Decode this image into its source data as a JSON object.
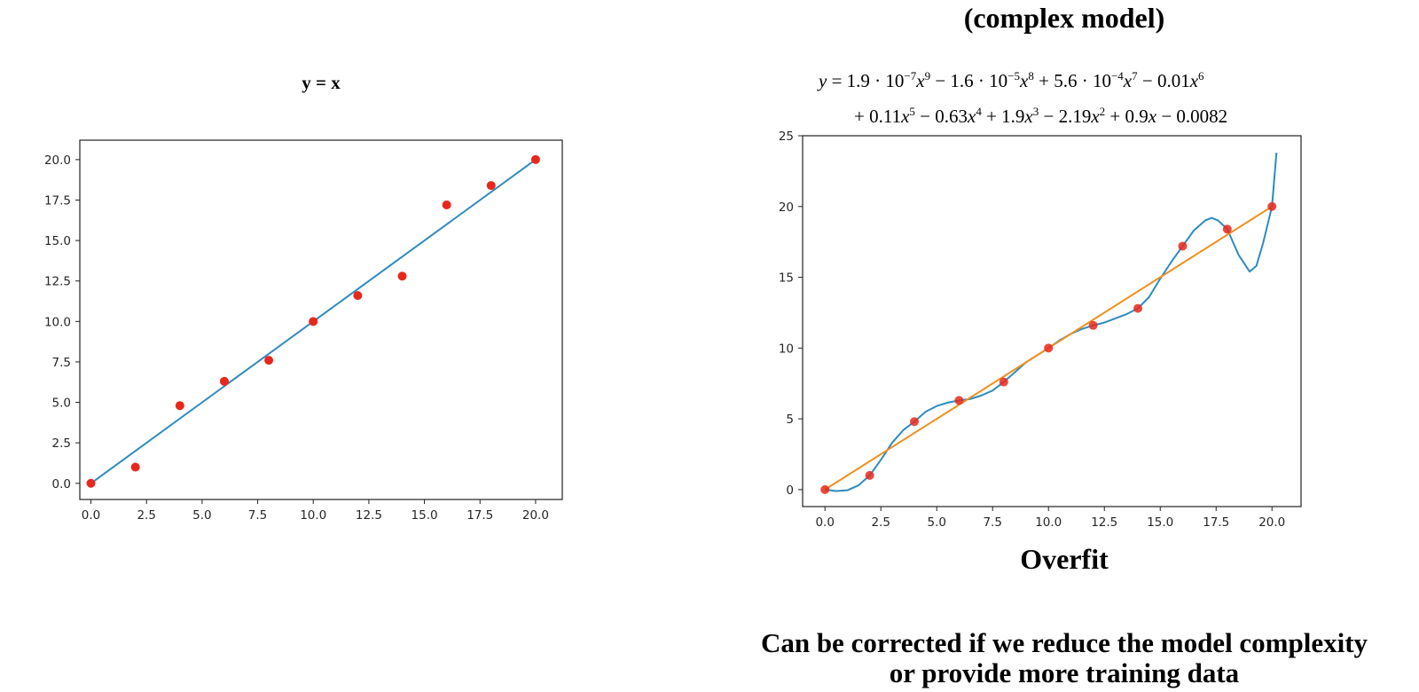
{
  "page": {
    "top_heading": "(complex model)",
    "overfit_label": "Overfit",
    "conclusion_line_1": "Can be corrected if we reduce the model complexity",
    "conclusion_line_2": "or provide more training data"
  },
  "equation": {
    "line1": [
      {
        "t": "",
        "i": "y"
      },
      {
        "t": " = 1.9 · 10"
      },
      {
        "sup": "−7"
      },
      {
        "i": "x"
      },
      {
        "sup": "9"
      },
      {
        "t": " − 1.6 · 10"
      },
      {
        "sup": "−5"
      },
      {
        "i": "x"
      },
      {
        "sup": "8"
      },
      {
        "t": " + 5.6 · 10"
      },
      {
        "sup": "−4"
      },
      {
        "i": "x"
      },
      {
        "sup": "7"
      },
      {
        "t": " − 0.01"
      },
      {
        "i": "x"
      },
      {
        "sup": "6"
      }
    ],
    "line2": [
      {
        "t": "+ 0.11"
      },
      {
        "i": "x"
      },
      {
        "sup": "5"
      },
      {
        "t": " − 0.63"
      },
      {
        "i": "x"
      },
      {
        "sup": "4"
      },
      {
        "t": " + 1.9"
      },
      {
        "i": "x"
      },
      {
        "sup": "3"
      },
      {
        "t": " − 2.19"
      },
      {
        "i": "x"
      },
      {
        "sup": "2"
      },
      {
        "t": " + 0.9"
      },
      {
        "i": "x"
      },
      {
        "t": " − 0.0082"
      }
    ]
  },
  "chart_data": [
    {
      "type": "scatter",
      "title": "y = x",
      "xlim": [
        -0.5,
        21.2
      ],
      "ylim": [
        -1.0,
        21.2
      ],
      "xticks": [
        0,
        2.5,
        5,
        7.5,
        10,
        12.5,
        15,
        17.5,
        20
      ],
      "xtick_labels": [
        "0.0",
        "2.5",
        "5.0",
        "7.5",
        "10.0",
        "12.5",
        "15.0",
        "17.5",
        "20.0"
      ],
      "yticks": [
        0,
        2.5,
        5,
        7.5,
        10,
        12.5,
        15,
        17.5,
        20
      ],
      "ytick_labels": [
        "0.0",
        "2.5",
        "5.0",
        "7.5",
        "10.0",
        "12.5",
        "15.0",
        "17.5",
        "20.0"
      ],
      "grid": false,
      "points": {
        "color": "#e8281c",
        "x": [
          0,
          2,
          4,
          6,
          8,
          10,
          12,
          14,
          16,
          18,
          20
        ],
        "y": [
          0,
          1.0,
          4.8,
          6.3,
          7.6,
          10.0,
          11.6,
          12.8,
          17.2,
          18.4,
          20.0
        ]
      },
      "lines": [
        {
          "color": "#2e8bc0",
          "x": [
            0,
            20
          ],
          "y": [
            0,
            20
          ]
        }
      ]
    },
    {
      "type": "scatter",
      "title": "",
      "xlim": [
        -1.0,
        21.3
      ],
      "ylim": [
        -1.2,
        25.0
      ],
      "xticks": [
        0,
        2.5,
        5,
        7.5,
        10,
        12.5,
        15,
        17.5,
        20
      ],
      "xtick_labels": [
        "0.0",
        "2.5",
        "5.0",
        "7.5",
        "10.0",
        "12.5",
        "15.0",
        "17.5",
        "20.0"
      ],
      "yticks": [
        0,
        5,
        10,
        15,
        20,
        25
      ],
      "ytick_labels": [
        "0",
        "5",
        "10",
        "15",
        "20",
        "25"
      ],
      "grid": false,
      "points": {
        "color": "#e8281c",
        "x": [
          0,
          2,
          4,
          6,
          8,
          10,
          12,
          14,
          16,
          18,
          20
        ],
        "y": [
          0,
          1.0,
          4.8,
          6.3,
          7.6,
          10.0,
          11.6,
          12.8,
          17.2,
          18.4,
          20.0
        ]
      },
      "lines": [
        {
          "color": "#2e8bc0",
          "x": [
            0,
            0.5,
            1.0,
            1.5,
            2.0,
            2.5,
            3.0,
            3.5,
            4.0,
            4.5,
            5.0,
            5.5,
            6.0,
            6.5,
            7.0,
            7.5,
            8.0,
            8.5,
            9.0,
            9.5,
            10.0,
            10.5,
            11.0,
            11.5,
            12.0,
            12.5,
            13.0,
            13.5,
            14.0,
            14.5,
            15.0,
            15.5,
            16.0,
            16.5,
            17.0,
            17.3,
            17.6,
            18.0,
            18.5,
            19.0,
            19.3,
            19.6,
            20.0,
            20.2
          ],
          "y": [
            0,
            -0.1,
            -0.05,
            0.3,
            1.0,
            2.1,
            3.3,
            4.2,
            4.8,
            5.5,
            5.9,
            6.15,
            6.3,
            6.4,
            6.65,
            7.0,
            7.6,
            8.3,
            9.0,
            9.5,
            10.0,
            10.55,
            11.0,
            11.35,
            11.6,
            11.8,
            12.1,
            12.4,
            12.8,
            13.6,
            14.9,
            16.1,
            17.2,
            18.3,
            19.0,
            19.2,
            19.0,
            18.4,
            16.6,
            15.4,
            15.8,
            17.4,
            20.0,
            23.8
          ]
        },
        {
          "color": "#f0901e",
          "x": [
            0,
            20
          ],
          "y": [
            0,
            20
          ]
        }
      ]
    }
  ]
}
